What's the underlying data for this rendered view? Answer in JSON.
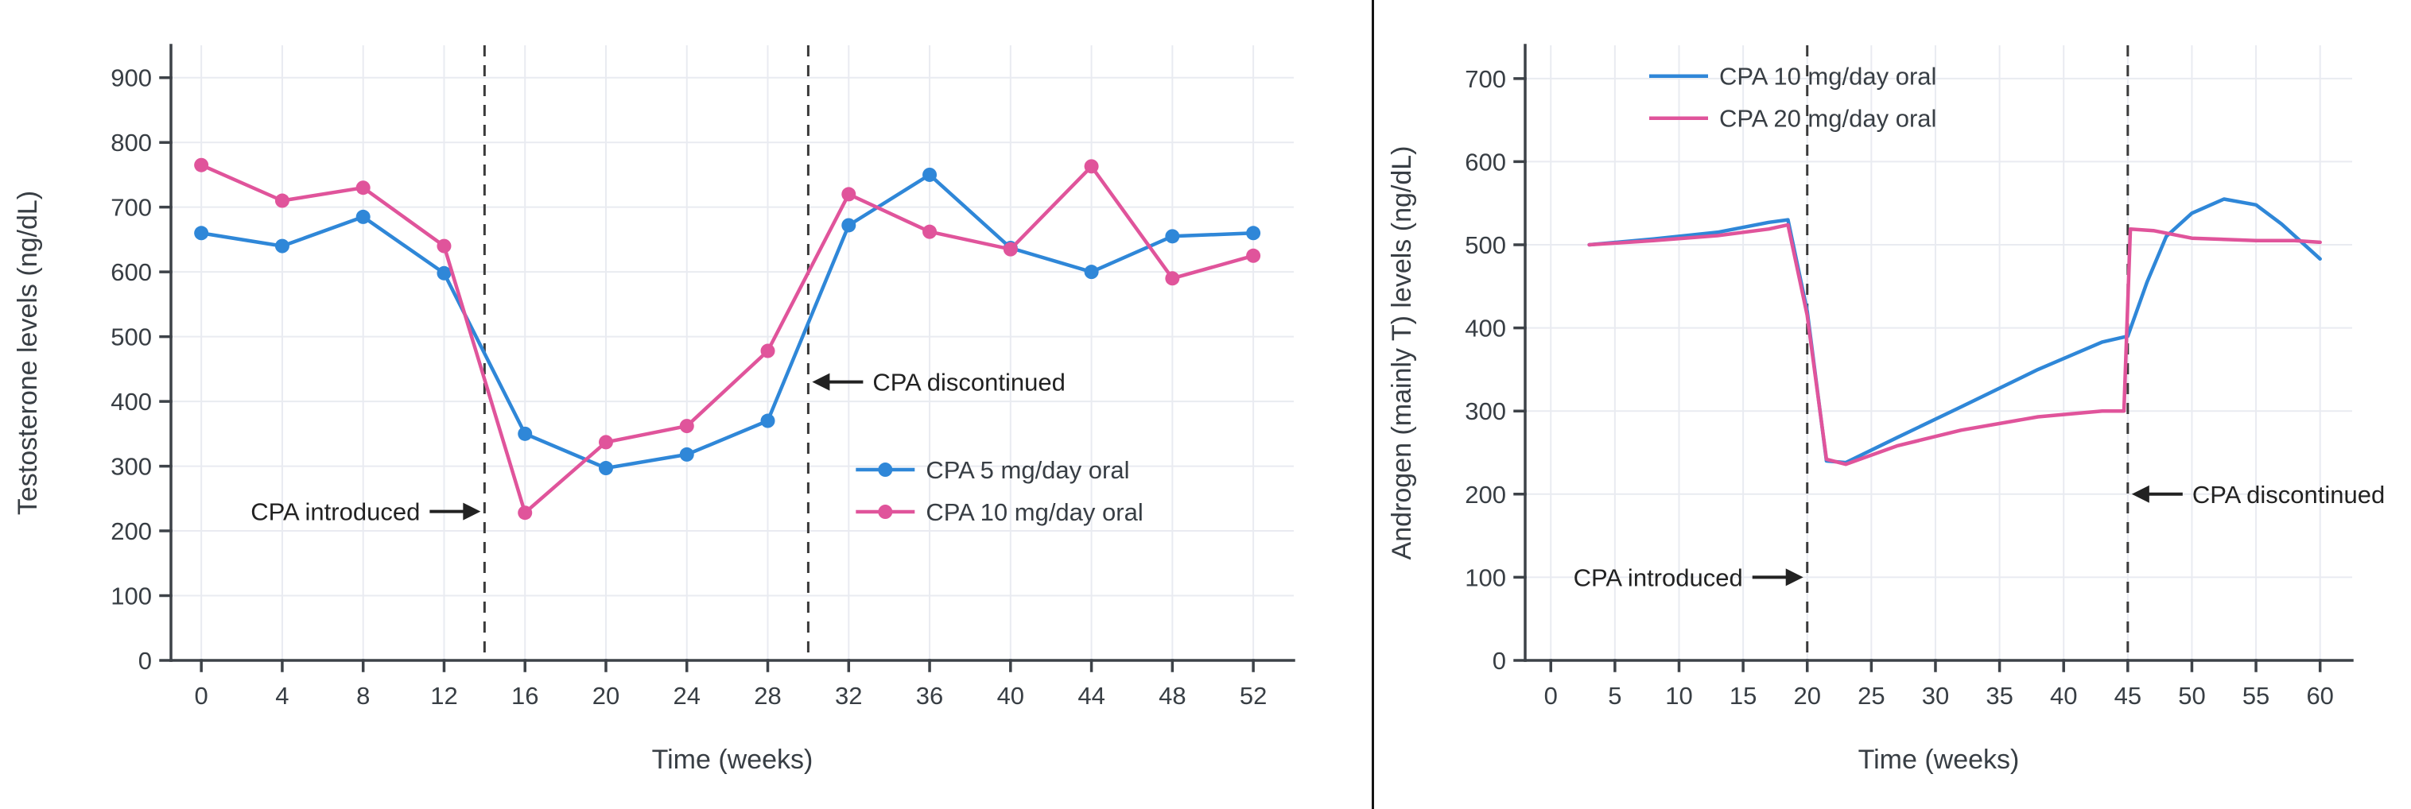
{
  "layout_colors": {
    "background": "#ffffff",
    "divider_color": "#141414",
    "axis_color": "#3d4248",
    "grid_color": "#e9ebf1",
    "text_color": "#383e44",
    "dash_color": "#3a3a3a",
    "annotation_color": "#222222"
  },
  "chart_data": [
    {
      "type": "line",
      "title": "",
      "xlabel": "Time (weeks)",
      "ylabel": "Testosterone levels (ng/dL)",
      "xlim": [
        -1.5,
        54
      ],
      "ylim": [
        0,
        950
      ],
      "xticks": [
        0,
        4,
        8,
        12,
        16,
        20,
        24,
        28,
        32,
        36,
        40,
        44,
        48,
        52
      ],
      "yticks": [
        0,
        100,
        200,
        300,
        400,
        500,
        600,
        700,
        800,
        900
      ],
      "grid": true,
      "series": [
        {
          "name": "CPA 5 mg/day oral",
          "color": "#2f87d8",
          "markers": true,
          "x": [
            0,
            4,
            8,
            12,
            16,
            20,
            24,
            28,
            32,
            36,
            40,
            44,
            48,
            52
          ],
          "y": [
            660,
            640,
            685,
            598,
            350,
            297,
            318,
            370,
            672,
            750,
            637,
            600,
            655,
            660
          ]
        },
        {
          "name": "CPA 10 mg/day oral",
          "color": "#e0549b",
          "markers": true,
          "x": [
            0,
            4,
            8,
            12,
            16,
            20,
            24,
            28,
            32,
            36,
            40,
            44,
            48,
            52
          ],
          "y": [
            765,
            710,
            730,
            640,
            228,
            337,
            362,
            478,
            720,
            662,
            635,
            763,
            590,
            625
          ]
        }
      ],
      "vlines": [
        {
          "x": 14
        },
        {
          "x": 30
        }
      ],
      "annotations": [
        {
          "text": "CPA introduced",
          "arrow": "right",
          "x": 14,
          "y": 230
        },
        {
          "text": "CPA discontinued",
          "arrow": "left",
          "x": 30,
          "y": 430
        }
      ],
      "legend": {
        "position": "inside lower right",
        "fx": 0.61,
        "fy": 0.69,
        "markers": true
      }
    },
    {
      "type": "line",
      "title": "",
      "xlabel": "Time (weeks)",
      "ylabel": "Androgen (mainly T) levels (ng/dL)",
      "xlim": [
        -2,
        62.5
      ],
      "ylim": [
        0,
        740
      ],
      "xticks": [
        0,
        5,
        10,
        15,
        20,
        25,
        30,
        35,
        40,
        45,
        50,
        55,
        60
      ],
      "yticks": [
        0,
        100,
        200,
        300,
        400,
        500,
        600,
        700
      ],
      "grid": true,
      "series": [
        {
          "name": "CPA 10 mg/day oral",
          "color": "#2f87d8",
          "markers": false,
          "x": [
            3,
            8,
            13,
            17,
            18.5,
            20,
            21.5,
            23,
            27,
            32,
            38,
            43,
            45,
            46.5,
            48,
            50,
            52.5,
            55,
            57,
            60
          ],
          "y": [
            500,
            507,
            515,
            527,
            530,
            420,
            240,
            238,
            268,
            305,
            350,
            383,
            390,
            455,
            510,
            538,
            555,
            548,
            525,
            483
          ]
        },
        {
          "name": "CPA 20 mg/day oral",
          "color": "#e0549b",
          "markers": false,
          "x": [
            3,
            8,
            13,
            17,
            18.5,
            20,
            21.5,
            23,
            27,
            32,
            38,
            43,
            44.7,
            45.2,
            47,
            50,
            55,
            58,
            60
          ],
          "y": [
            500,
            505,
            511,
            519,
            524,
            415,
            242,
            236,
            258,
            277,
            293,
            300,
            300,
            519,
            517,
            508,
            505,
            505,
            503
          ]
        }
      ],
      "vlines": [
        {
          "x": 20
        },
        {
          "x": 45
        }
      ],
      "annotations": [
        {
          "text": "CPA introduced",
          "arrow": "right",
          "x": 20,
          "y": 100
        },
        {
          "text": "CPA discontinued",
          "arrow": "left",
          "x": 45,
          "y": 200
        }
      ],
      "legend": {
        "position": "inside upper left",
        "fx": 0.15,
        "fy": 0.05,
        "markers": false
      }
    }
  ]
}
